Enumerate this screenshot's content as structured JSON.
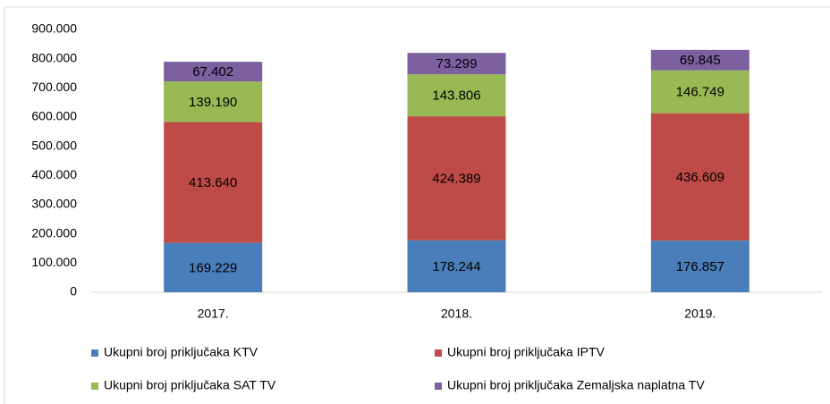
{
  "chart_data": {
    "type": "stacked_bar",
    "categories": [
      "2017.",
      "2018.",
      "2019."
    ],
    "series": [
      {
        "name": "Ukupni broj priključaka KTV",
        "color": "#4a7ebb",
        "values": [
          169229,
          178244,
          176857
        ],
        "value_labels": [
          "169.229",
          "178.244",
          "176.857"
        ]
      },
      {
        "name": "Ukupni broj priključaka IPTV",
        "color": "#be4b48",
        "values": [
          413640,
          424389,
          436609
        ],
        "value_labels": [
          "413.640",
          "424.389",
          "436.609"
        ]
      },
      {
        "name": "Ukupni broj priključaka SAT TV",
        "color": "#98b954",
        "values": [
          139190,
          143806,
          146749
        ],
        "value_labels": [
          "139.190",
          "143.806",
          "146.749"
        ]
      },
      {
        "name": "Ukupni broj priključaka Zemaljska naplatna TV",
        "color": "#7d60a0",
        "values": [
          67402,
          73299,
          69845
        ],
        "value_labels": [
          "67.402",
          "73.299",
          "69.845"
        ]
      }
    ],
    "ylim": [
      0,
      900000
    ],
    "yticks": [
      0,
      {
        "value": 100000,
        "label": "100.000"
      },
      {
        "value": 200000,
        "label": "200.000"
      },
      {
        "value": 300000,
        "label": "300.000"
      },
      {
        "value": 400000,
        "label": "400.000"
      },
      {
        "value": 500000,
        "label": "500.000"
      },
      {
        "value": 600000,
        "label": "600.000"
      },
      {
        "value": 700000,
        "label": "700.000"
      },
      {
        "value": 800000,
        "label": "800.000"
      },
      {
        "value": 900000,
        "label": "900.000"
      }
    ],
    "grid": false,
    "legend": "bottom"
  }
}
